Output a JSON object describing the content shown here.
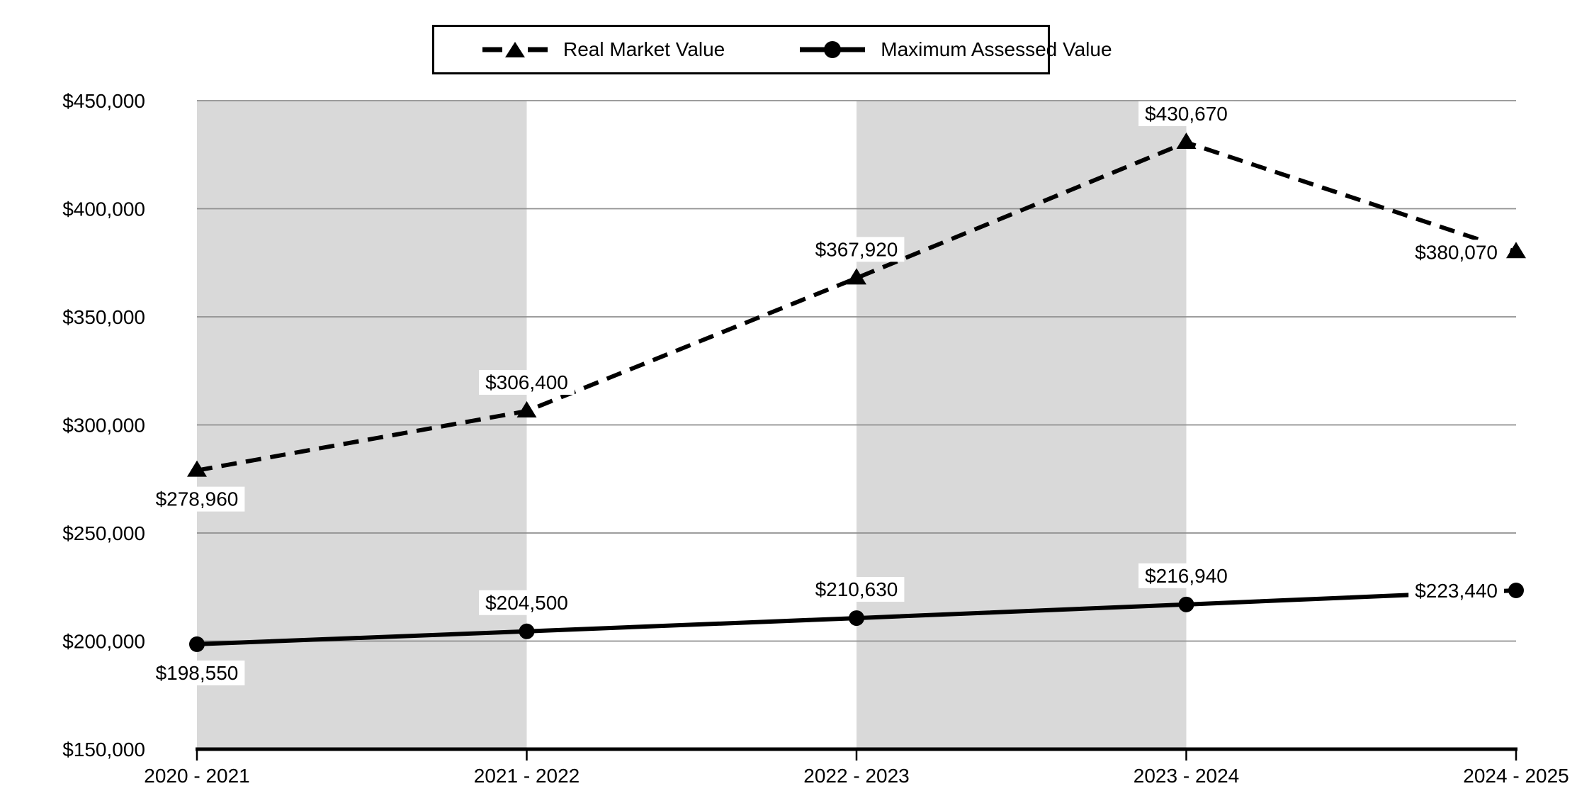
{
  "legend": {
    "items": [
      {
        "label": "Real Market Value",
        "marker": "dashed-line-triangle"
      },
      {
        "label": "Maximum Assessed Value",
        "marker": "solid-line-circle"
      }
    ]
  },
  "chart_data": {
    "type": "line",
    "title": "",
    "xlabel": "",
    "ylabel": "",
    "categories": [
      "2020 - 2021",
      "2021 - 2022",
      "2022 - 2023",
      "2023 - 2024",
      "2024 - 2025"
    ],
    "series": [
      {
        "name": "Real Market Value",
        "line_style": "dashed",
        "marker": "triangle",
        "values": [
          278960,
          306400,
          367920,
          430670,
          380070
        ],
        "labels": [
          "$278,960",
          "$306,400",
          "$367,920",
          "$430,670",
          "$380,070"
        ],
        "label_positions": [
          "below",
          "above",
          "above",
          "above",
          "left"
        ]
      },
      {
        "name": "Maximum Assessed Value",
        "line_style": "solid",
        "marker": "circle",
        "values": [
          198550,
          204500,
          210630,
          216940,
          223440
        ],
        "labels": [
          "$198,550",
          "$204,500",
          "$210,630",
          "$216,940",
          "$223,440"
        ],
        "label_positions": [
          "below",
          "above",
          "above",
          "above",
          "left"
        ]
      }
    ],
    "y_axis": {
      "min": 150000,
      "max": 450000,
      "step": 50000,
      "tick_labels": [
        "$150,000",
        "$200,000",
        "$250,000",
        "$300,000",
        "$350,000",
        "$400,000",
        "$450,000"
      ]
    },
    "grid": true,
    "legend_position": "top",
    "shaded_bands_between_categories": [
      [
        0,
        1
      ],
      [
        2,
        3
      ]
    ]
  },
  "colors": {
    "background": "#ffffff",
    "band": "#d9d9d9",
    "gridline": "#8f8f8f",
    "axis": "#000000",
    "series": "#000000",
    "text": "#000000",
    "label_background": "#ffffff"
  }
}
